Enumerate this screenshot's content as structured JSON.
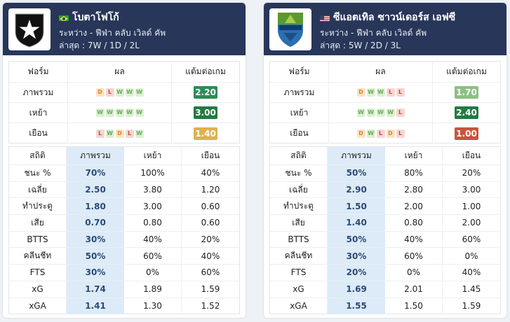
{
  "teams": [
    {
      "name": "โบตาโฟโก้",
      "flag": "brazil-flag-icon",
      "competition_line": "ระหว่าง - ฟีฟ่า คลับ เวิลด์ คัพ",
      "recent_line": "ล่าสุด : 7W / 1D / 2L",
      "logo": "botafogo-star-logo",
      "form_headers": [
        "ฟอร์ม",
        "ผล",
        "แต้มต่อเกม"
      ],
      "form_rows": [
        {
          "label": "ภาพรวม",
          "results": [
            "D",
            "L",
            "W",
            "W",
            "W"
          ],
          "ppg": "2.20",
          "ppg_color": "#2e8b57"
        },
        {
          "label": "เหย้า",
          "results": [
            "W",
            "W",
            "W",
            "W",
            "W"
          ],
          "ppg": "3.00",
          "ppg_color": "#237a43"
        },
        {
          "label": "เยือน",
          "results": [
            "L",
            "W",
            "D",
            "L",
            "W"
          ],
          "ppg": "1.40",
          "ppg_color": "#e0b050"
        }
      ],
      "stats_headers": [
        "สถิติ",
        "ภาพรวม",
        "เหย้า",
        "เยือน"
      ],
      "stats_rows": [
        {
          "label": "ชนะ %",
          "overall": "70%",
          "home": "100%",
          "away": "40%"
        },
        {
          "label": "เฉลี่ย",
          "overall": "2.50",
          "home": "3.80",
          "away": "1.20"
        },
        {
          "label": "ทำประตู",
          "overall": "1.80",
          "home": "3.00",
          "away": "0.60"
        },
        {
          "label": "เสีย",
          "overall": "0.70",
          "home": "0.80",
          "away": "0.60"
        },
        {
          "label": "BTTS",
          "overall": "30%",
          "home": "40%",
          "away": "20%"
        },
        {
          "label": "คลีนชีท",
          "overall": "50%",
          "home": "60%",
          "away": "40%"
        },
        {
          "label": "FTS",
          "overall": "30%",
          "home": "0%",
          "away": "60%"
        },
        {
          "label": "xG",
          "overall": "1.74",
          "home": "1.89",
          "away": "1.59"
        },
        {
          "label": "xGA",
          "overall": "1.41",
          "home": "1.30",
          "away": "1.52"
        }
      ]
    },
    {
      "name": "ซีแอตเทิล ซาวน์เดอร์ส เอฟซี",
      "flag": "usa-flag-icon",
      "competition_line": "ระหว่าง - ฟีฟ่า คลับ เวิลด์ คัพ",
      "recent_line": "ล่าสุด : 5W / 2D / 3L",
      "logo": "seattle-sounders-logo",
      "form_headers": [
        "ฟอร์ม",
        "ผล",
        "แต้มต่อเกม"
      ],
      "form_rows": [
        {
          "label": "ภาพรวม",
          "results": [
            "D",
            "W",
            "W",
            "L",
            "L"
          ],
          "ppg": "1.70",
          "ppg_color": "#8cc084"
        },
        {
          "label": "เหย้า",
          "results": [
            "W",
            "W",
            "W",
            "W",
            "L"
          ],
          "ppg": "2.40",
          "ppg_color": "#237a43"
        },
        {
          "label": "เยือน",
          "results": [
            "D",
            "W",
            "L",
            "D",
            "L"
          ],
          "ppg": "1.00",
          "ppg_color": "#c8553d"
        }
      ],
      "stats_headers": [
        "สถิติ",
        "ภาพรวม",
        "เหย้า",
        "เยือน"
      ],
      "stats_rows": [
        {
          "label": "ชนะ %",
          "overall": "50%",
          "home": "80%",
          "away": "20%"
        },
        {
          "label": "เฉลี่ย",
          "overall": "2.90",
          "home": "2.80",
          "away": "3.00"
        },
        {
          "label": "ทำประตู",
          "overall": "1.50",
          "home": "2.00",
          "away": "1.00"
        },
        {
          "label": "เสีย",
          "overall": "1.40",
          "home": "0.80",
          "away": "2.00"
        },
        {
          "label": "BTTS",
          "overall": "50%",
          "home": "40%",
          "away": "60%"
        },
        {
          "label": "คลีนชีท",
          "overall": "30%",
          "home": "60%",
          "away": "0%"
        },
        {
          "label": "FTS",
          "overall": "20%",
          "home": "0%",
          "away": "40%"
        },
        {
          "label": "xG",
          "overall": "1.69",
          "home": "2.01",
          "away": "1.45"
        },
        {
          "label": "xGA",
          "overall": "1.55",
          "home": "1.50",
          "away": "1.59"
        }
      ]
    }
  ]
}
